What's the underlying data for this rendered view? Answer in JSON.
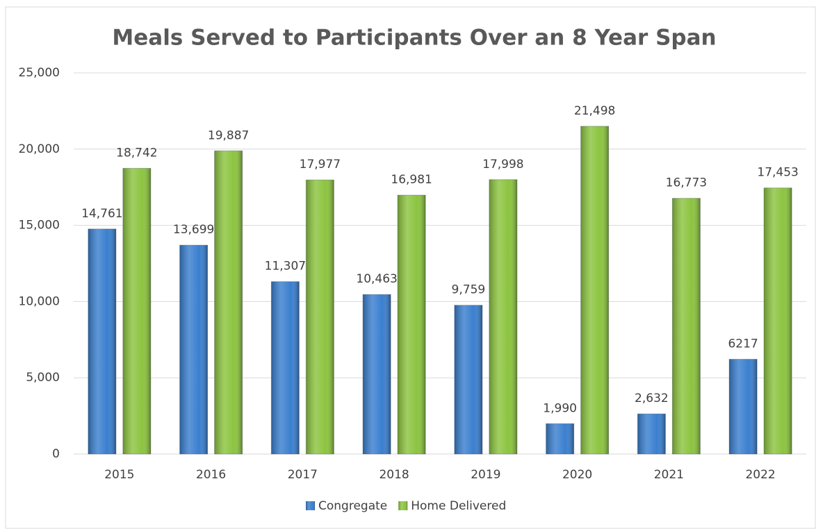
{
  "chart_data": {
    "type": "bar",
    "title": "Meals Served to Participants Over an 8 Year Span",
    "categories": [
      "2015",
      "2016",
      "2017",
      "2018",
      "2019",
      "2020",
      "2021",
      "2022"
    ],
    "series": [
      {
        "name": "Congregate",
        "color": "#3a7fcf",
        "values": [
          14761,
          13699,
          11307,
          10463,
          9759,
          1990,
          2632,
          6217
        ],
        "value_labels": [
          "14,761",
          "13,699",
          "11,307",
          "10,463",
          "9,759",
          "1,990",
          "2,632",
          "6217"
        ]
      },
      {
        "name": "Home Delivered",
        "color": "#8cc43f",
        "values": [
          18742,
          19887,
          17977,
          16981,
          17998,
          21498,
          16773,
          17453
        ],
        "value_labels": [
          "18,742",
          "19,887",
          "17,977",
          "16,981",
          "17,998",
          "21,498",
          "16,773",
          "17,453"
        ]
      }
    ],
    "ylim": [
      0,
      25000
    ],
    "yticks": [
      0,
      {
        "value": 5000,
        "label": "5,000"
      },
      {
        "value": 10000,
        "label": "10,000"
      },
      {
        "value": 15000,
        "label": "15,000"
      },
      {
        "value": 20000,
        "label": "20,000"
      },
      {
        "value": 25000,
        "label": "25,000"
      }
    ],
    "grid": true,
    "legend": "bottom"
  }
}
